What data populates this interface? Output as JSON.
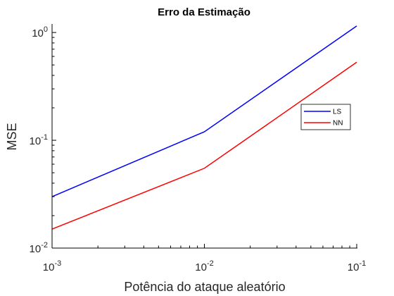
{
  "chart_data": {
    "type": "line",
    "title": "Erro da Estimação",
    "xlabel": "Potência do ataque aleatório",
    "ylabel": "MSE",
    "xscale": "log",
    "yscale": "log",
    "xlim": [
      0.001,
      0.1
    ],
    "ylim": [
      0.01,
      1.2
    ],
    "x": [
      0.001,
      0.01,
      0.1
    ],
    "x_ticks": [
      {
        "base": "10",
        "exp": "-3",
        "value": 0.001
      },
      {
        "base": "10",
        "exp": "-2",
        "value": 0.01
      },
      {
        "base": "10",
        "exp": "-1",
        "value": 0.1
      }
    ],
    "y_ticks": [
      {
        "base": "10",
        "exp": "-2",
        "value": 0.01
      },
      {
        "base": "10",
        "exp": "-1",
        "value": 0.1
      },
      {
        "base": "10",
        "exp": "0",
        "value": 1
      }
    ],
    "series": [
      {
        "name": "LS",
        "color": "#0000ff",
        "values": [
          0.03,
          0.12,
          1.15
        ]
      },
      {
        "name": "NN",
        "color": "#ff0000",
        "values": [
          0.015,
          0.055,
          0.53
        ]
      }
    ],
    "legend_position": "right",
    "grid": false
  }
}
